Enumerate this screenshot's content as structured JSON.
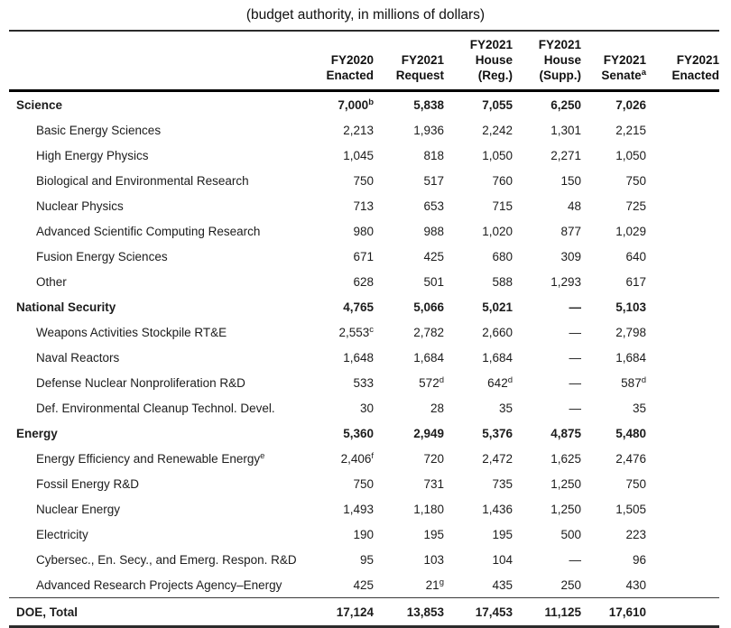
{
  "caption": "(budget authority, in millions of dollars)",
  "table": {
    "columns": [
      {
        "lines": []
      },
      {
        "lines": [
          "FY2020",
          "Enacted"
        ]
      },
      {
        "lines": [
          "FY2021",
          "Request"
        ]
      },
      {
        "lines": [
          "FY2021",
          "House",
          "(Reg.)"
        ]
      },
      {
        "lines": [
          "FY2021",
          "House",
          "(Supp.)"
        ]
      },
      {
        "lines": [
          "FY2021",
          "Senate^a"
        ]
      },
      {
        "lines": [
          "FY2021",
          "Enacted"
        ]
      }
    ],
    "rows": [
      {
        "label": "Science",
        "level": "section",
        "values": [
          "7,000^b",
          "5,838",
          "7,055",
          "6,250",
          "7,026",
          ""
        ]
      },
      {
        "label": "Basic Energy Sciences",
        "level": "sub",
        "values": [
          "2,213",
          "1,936",
          "2,242",
          "1,301",
          "2,215",
          ""
        ]
      },
      {
        "label": "High Energy Physics",
        "level": "sub",
        "values": [
          "1,045",
          "818",
          "1,050",
          "2,271",
          "1,050",
          ""
        ]
      },
      {
        "label": "Biological and Environmental Research",
        "level": "sub",
        "values": [
          "750",
          "517",
          "760",
          "150",
          "750",
          ""
        ]
      },
      {
        "label": "Nuclear Physics",
        "level": "sub",
        "values": [
          "713",
          "653",
          "715",
          "48",
          "725",
          ""
        ]
      },
      {
        "label": "Advanced Scientific Computing Research",
        "level": "sub",
        "values": [
          "980",
          "988",
          "1,020",
          "877",
          "1,029",
          ""
        ]
      },
      {
        "label": "Fusion Energy Sciences",
        "level": "sub",
        "values": [
          "671",
          "425",
          "680",
          "309",
          "640",
          ""
        ]
      },
      {
        "label": "Other",
        "level": "sub",
        "values": [
          "628",
          "501",
          "588",
          "1,293",
          "617",
          ""
        ]
      },
      {
        "label": "National Security",
        "level": "section",
        "values": [
          "4,765",
          "5,066",
          "5,021",
          "—",
          "5,103",
          ""
        ]
      },
      {
        "label": "Weapons Activities Stockpile RT&E",
        "level": "sub",
        "values": [
          "2,553^c",
          "2,782",
          "2,660",
          "—",
          "2,798",
          ""
        ]
      },
      {
        "label": "Naval Reactors",
        "level": "sub",
        "values": [
          "1,648",
          "1,684",
          "1,684",
          "—",
          "1,684",
          ""
        ]
      },
      {
        "label": "Defense Nuclear Nonproliferation R&D",
        "level": "sub",
        "values": [
          "533",
          "572^d",
          "642^d",
          "—",
          "587^d",
          ""
        ]
      },
      {
        "label": "Def. Environmental Cleanup Technol. Devel.",
        "level": "sub",
        "values": [
          "30",
          "28",
          "35",
          "—",
          "35",
          ""
        ]
      },
      {
        "label": "Energy",
        "level": "section",
        "values": [
          "5,360",
          "2,949",
          "5,376",
          "4,875",
          "5,480",
          ""
        ]
      },
      {
        "label": "Energy Efficiency and Renewable Energy^e",
        "level": "sub",
        "values": [
          "2,406^f",
          "720",
          "2,472",
          "1,625",
          "2,476",
          ""
        ]
      },
      {
        "label": "Fossil Energy R&D",
        "level": "sub",
        "values": [
          "750",
          "731",
          "735",
          "1,250",
          "750",
          ""
        ]
      },
      {
        "label": "Nuclear Energy",
        "level": "sub",
        "values": [
          "1,493",
          "1,180",
          "1,436",
          "1,250",
          "1,505",
          ""
        ]
      },
      {
        "label": "Electricity",
        "level": "sub",
        "values": [
          "190",
          "195",
          "195",
          "500",
          "223",
          ""
        ]
      },
      {
        "label": "Cybersec., En. Secy., and Emerg. Respon. R&D",
        "level": "sub",
        "values": [
          "95",
          "103",
          "104",
          "—",
          "96",
          ""
        ]
      },
      {
        "label": "Advanced Research Projects Agency–Energy",
        "level": "sub",
        "values": [
          "425",
          "21^g",
          "435",
          "250",
          "430",
          ""
        ]
      },
      {
        "label": "DOE, Total",
        "level": "total",
        "values": [
          "17,124",
          "13,853",
          "17,453",
          "11,125",
          "17,610",
          ""
        ]
      }
    ]
  }
}
